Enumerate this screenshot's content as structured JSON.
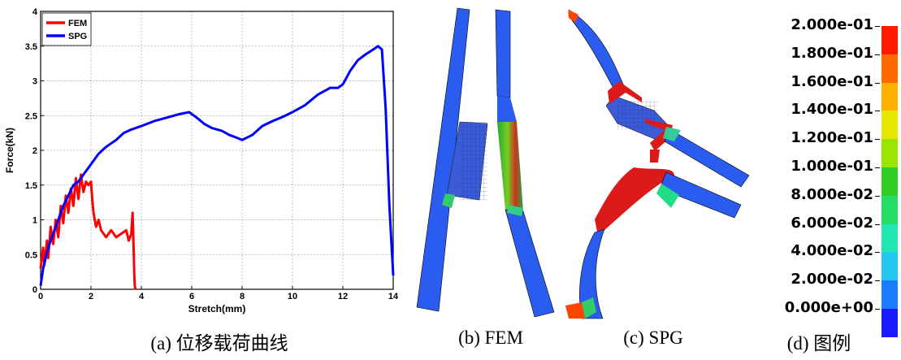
{
  "chart_data": {
    "type": "line",
    "xlabel": "Stretch(mm)",
    "ylabel": "Force(kN)",
    "xlim": [
      0,
      14
    ],
    "ylim": [
      0,
      4
    ],
    "x_ticks": [
      0,
      2,
      4,
      6,
      8,
      10,
      12,
      14
    ],
    "y_ticks": [
      0,
      0.5,
      1,
      1.5,
      2,
      2.5,
      3,
      3.5,
      4
    ],
    "x_tick_labels": [
      "0",
      "2",
      "4",
      "6",
      "8",
      "10",
      "12",
      "14"
    ],
    "y_tick_labels": [
      "0",
      "0.5",
      "1",
      "1.5",
      "2",
      "2.5",
      "3",
      "3.5",
      "4"
    ],
    "grid": true,
    "legend_position": "top-left",
    "series": [
      {
        "name": "FEM",
        "color": "#ff0000",
        "x": [
          0,
          0.1,
          0.15,
          0.25,
          0.3,
          0.4,
          0.5,
          0.6,
          0.7,
          0.8,
          0.9,
          1.0,
          1.1,
          1.2,
          1.3,
          1.4,
          1.5,
          1.6,
          1.7,
          1.8,
          1.9,
          2.0,
          2.05,
          2.1,
          2.2,
          2.3,
          2.4,
          2.6,
          2.8,
          3.0,
          3.2,
          3.4,
          3.5,
          3.6,
          3.65,
          3.7,
          3.72,
          3.74,
          3.76
        ],
        "y": [
          0.3,
          0.6,
          0.35,
          0.7,
          0.45,
          0.9,
          0.65,
          1.0,
          0.75,
          1.2,
          0.95,
          1.35,
          1.1,
          1.45,
          1.2,
          1.6,
          1.3,
          1.65,
          1.4,
          1.55,
          1.5,
          1.55,
          1.3,
          1.1,
          0.9,
          1.0,
          0.85,
          0.75,
          0.85,
          0.75,
          0.8,
          0.85,
          0.7,
          0.8,
          1.1,
          0.5,
          0.2,
          0.05,
          0
        ]
      },
      {
        "name": "SPG",
        "color": "#0000ff",
        "x": [
          0,
          0.1,
          0.2,
          0.3,
          0.5,
          0.7,
          0.9,
          1.1,
          1.3,
          1.5,
          1.7,
          2.0,
          2.3,
          2.6,
          3.0,
          3.3,
          3.6,
          4.0,
          4.5,
          5.0,
          5.5,
          5.9,
          6.2,
          6.5,
          6.8,
          7.2,
          7.5,
          7.8,
          8.0,
          8.4,
          8.8,
          9.2,
          9.6,
          10.0,
          10.5,
          11.0,
          11.5,
          11.8,
          12.0,
          12.3,
          12.6,
          12.9,
          13.2,
          13.4,
          13.55,
          13.7,
          13.85,
          14.0
        ],
        "y": [
          0.05,
          0.3,
          0.45,
          0.6,
          0.8,
          1.0,
          1.2,
          1.35,
          1.5,
          1.55,
          1.65,
          1.8,
          1.95,
          2.05,
          2.15,
          2.25,
          2.3,
          2.35,
          2.42,
          2.47,
          2.52,
          2.55,
          2.47,
          2.38,
          2.32,
          2.28,
          2.22,
          2.18,
          2.15,
          2.22,
          2.35,
          2.42,
          2.48,
          2.55,
          2.65,
          2.8,
          2.9,
          2.9,
          2.95,
          3.15,
          3.3,
          3.38,
          3.45,
          3.5,
          3.45,
          2.6,
          1.2,
          0.2
        ]
      }
    ]
  },
  "captions": {
    "a": "(a) 位移载荷曲线",
    "b": "(b) FEM",
    "c": "(c) SPG",
    "d": "(d) 图例"
  },
  "scale": {
    "labels": [
      "2.000e-01",
      "1.800e-01",
      "1.600e-01",
      "1.400e-01",
      "1.200e-01",
      "1.000e-01",
      "8.000e-02",
      "6.000e-02",
      "4.000e-02",
      "2.000e-02",
      "0.000e+00"
    ],
    "colors": [
      "#ff1a00",
      "#ff6a00",
      "#ffb000",
      "#e6e600",
      "#99e600",
      "#33cc22",
      "#22dd66",
      "#22e6b3",
      "#22c8ee",
      "#1a7cff",
      "#1a1aff"
    ]
  }
}
